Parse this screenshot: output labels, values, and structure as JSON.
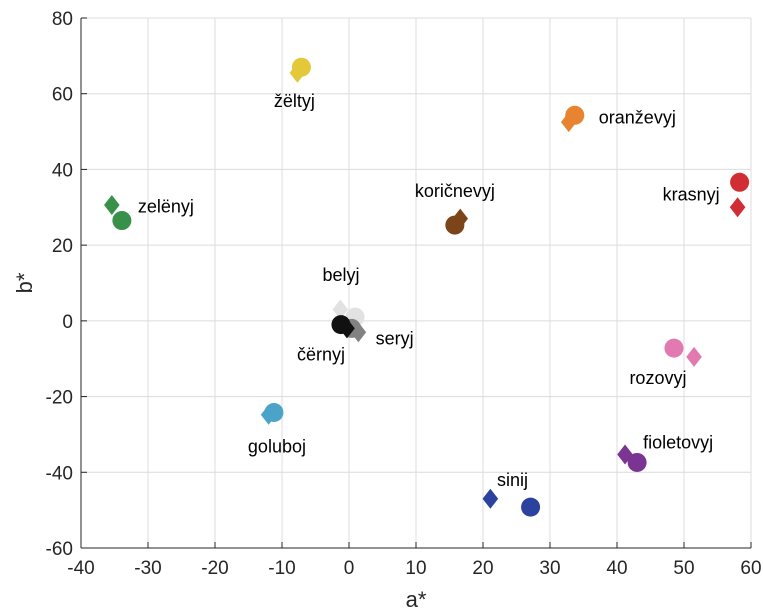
{
  "chart_data": {
    "type": "scatter",
    "title": "",
    "xlabel": "a*",
    "ylabel": "b*",
    "xlim": [
      -40,
      60
    ],
    "ylim": [
      -60,
      80
    ],
    "xticks": [
      -40,
      -30,
      -20,
      -10,
      0,
      10,
      20,
      30,
      40,
      50,
      60
    ],
    "yticks": [
      -60,
      -40,
      -20,
      0,
      20,
      40,
      60,
      80
    ],
    "grid": true,
    "legend": "none",
    "marker_shapes": [
      "diamond",
      "circle"
    ],
    "groups": [
      {
        "label": "žëltyj",
        "color": "#e3c83a",
        "diamond": [
          -7.7,
          65.5
        ],
        "circle": [
          -7.1,
          67.0
        ]
      },
      {
        "label": "oranževyj",
        "color": "#e8832f",
        "diamond": [
          32.8,
          52.5
        ],
        "circle": [
          33.7,
          54.3
        ]
      },
      {
        "label": "zelënyj",
        "color": "#37914a",
        "diamond": [
          -35.4,
          30.6
        ],
        "circle": [
          -33.9,
          26.5
        ]
      },
      {
        "label": "koričnevyj",
        "color": "#7b4419",
        "diamond": [
          16.6,
          27.0
        ],
        "circle": [
          15.8,
          25.3
        ]
      },
      {
        "label": "krasnyj",
        "color": "#d12e33",
        "diamond": [
          58.0,
          30.0
        ],
        "circle": [
          58.3,
          36.6
        ]
      },
      {
        "label": "belyj",
        "color": "#e2e2e2",
        "diamond": [
          -1.3,
          3.0
        ],
        "circle": [
          0.9,
          1.0
        ]
      },
      {
        "label": "seryj",
        "color": "#828282",
        "diamond": [
          1.4,
          -3.0
        ],
        "circle": [
          0.4,
          -2.0
        ]
      },
      {
        "label": "čërnyj",
        "color": "#111111",
        "diamond": [
          -0.3,
          -2.0
        ],
        "circle": [
          -1.2,
          -1.0
        ]
      },
      {
        "label": "rozovyj",
        "color": "#e27ab2",
        "diamond": [
          51.5,
          -9.5
        ],
        "circle": [
          48.5,
          -7.2
        ]
      },
      {
        "label": "goluboj",
        "color": "#4ba3c9",
        "diamond": [
          -12.0,
          -24.8
        ],
        "circle": [
          -11.2,
          -24.2
        ]
      },
      {
        "label": "fioletovyj",
        "color": "#7a3593",
        "diamond": [
          41.2,
          -35.3
        ],
        "circle": [
          43.0,
          -37.4
        ]
      },
      {
        "label": "sinij",
        "color": "#2b429e",
        "diamond": [
          21.1,
          -47.0
        ],
        "circle": [
          27.1,
          -49.2
        ]
      }
    ]
  }
}
